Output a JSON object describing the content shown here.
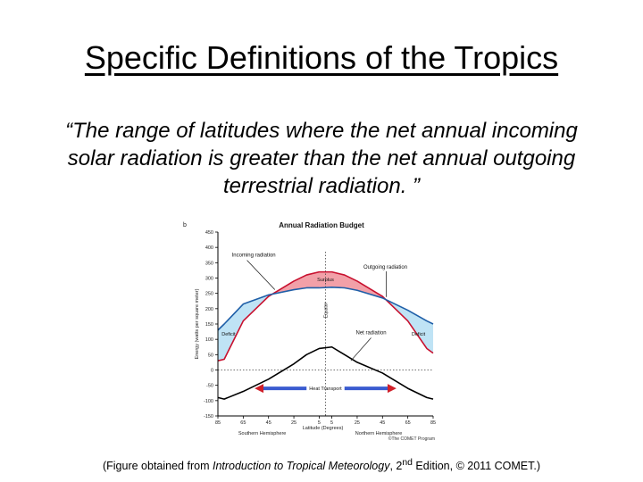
{
  "slide": {
    "title": "Specific Definitions of the Tropics",
    "quote_line1": "“The range of latitudes where the net annual incoming",
    "quote_line2": "solar radiation is greater than the net annual outgoing",
    "quote_line3": "terrestrial radiation. ”"
  },
  "caption": {
    "prefix": "(Figure obtained from ",
    "book": "Introduction to Tropical Meteorology",
    "middle": ", 2",
    "sup": "nd",
    "suffix": " Edition, © 2011 COMET.)"
  },
  "chart_data": {
    "type": "line",
    "panel_label": "b",
    "title": "Annual Radiation Budget",
    "ylabel": "Energy (watts per square meter)",
    "xlabel": "Latitude (Degrees)",
    "hemisphere_south": "Southern Hemisphere",
    "hemisphere_north": "Northern Hemisphere",
    "credit": "©The COMET Program",
    "ylim": [
      -150,
      450
    ],
    "yticks": [
      450,
      400,
      350,
      300,
      250,
      200,
      150,
      100,
      50,
      0,
      -50,
      -100,
      -150
    ],
    "xticks": [
      "85",
      "65",
      "45",
      "25",
      "5",
      "5",
      "25",
      "45",
      "65",
      "85"
    ],
    "x_positions": [
      -85,
      -65,
      -45,
      -25,
      -5,
      5,
      25,
      45,
      65,
      85
    ],
    "x": [
      -85,
      -80,
      -65,
      -45,
      -25,
      -15,
      -5,
      5,
      15,
      25,
      45,
      65,
      80,
      85
    ],
    "series": [
      {
        "name": "Incoming radiation",
        "color": "#c8102e",
        "values": [
          30,
          35,
          160,
          240,
          290,
          310,
          320,
          320,
          310,
          290,
          240,
          160,
          70,
          55
        ]
      },
      {
        "name": "Outgoing radiation",
        "color": "#1f5fa8",
        "values": [
          130,
          150,
          215,
          245,
          262,
          268,
          268,
          270,
          268,
          260,
          235,
          195,
          160,
          150
        ]
      },
      {
        "name": "Net radiation",
        "color": "#000000",
        "values": [
          -90,
          -95,
          -70,
          -30,
          20,
          50,
          70,
          75,
          50,
          25,
          -10,
          -60,
          -90,
          -95
        ]
      }
    ],
    "annotations": {
      "incoming": "Incoming radiation",
      "outgoing": "Outgoing radiation",
      "surplus": "Surplus",
      "deficit_left": "Deficit",
      "deficit_right": "Deficit",
      "net": "Net radiation",
      "equator": "Equator",
      "heat_transport": "Heat Transport"
    },
    "colors": {
      "surplus_fill": "#f2a0a8",
      "deficit_fill": "#bfe3f5",
      "arrow_red": "#d0202a",
      "arrow_blue": "#3a5bd0"
    },
    "grid": false
  }
}
